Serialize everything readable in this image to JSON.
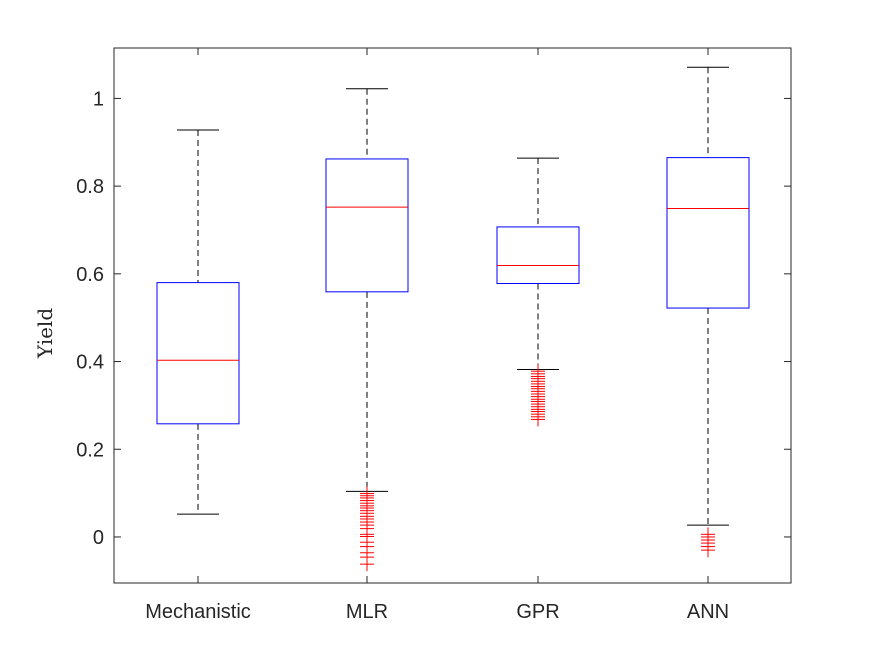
{
  "chart_data": {
    "type": "box",
    "ylabel": "Yield",
    "categories": [
      "Mechanistic",
      "MLR",
      "GPR",
      "ANN"
    ],
    "ylim": [
      -0.105,
      1.115
    ],
    "yticks": [
      0,
      0.2,
      0.4,
      0.6,
      0.8,
      1
    ],
    "ytick_labels": [
      "0",
      "0.2",
      "0.4",
      "0.6",
      "0.8",
      "1"
    ],
    "grid": false,
    "boxes": [
      {
        "name": "Mechanistic",
        "whisker_low": 0.052,
        "q1": 0.258,
        "median": 0.403,
        "q3": 0.58,
        "whisker_high": 0.928,
        "outliers": []
      },
      {
        "name": "MLR",
        "whisker_low": 0.104,
        "q1": 0.559,
        "median": 0.752,
        "q3": 0.862,
        "whisker_high": 1.022,
        "outliers": [
          0.099,
          0.094,
          0.089,
          0.083,
          0.077,
          0.071,
          0.066,
          0.06,
          0.054,
          0.047,
          0.041,
          0.034,
          0.027,
          0.019,
          0.006,
          0.001,
          -0.012,
          -0.022,
          -0.036,
          -0.046,
          -0.062
        ]
      },
      {
        "name": "GPR",
        "whisker_low": 0.382,
        "q1": 0.578,
        "median": 0.619,
        "q3": 0.707,
        "whisker_high": 0.864,
        "outliers": [
          0.378,
          0.372,
          0.366,
          0.361,
          0.355,
          0.349,
          0.343,
          0.338,
          0.332,
          0.326,
          0.32,
          0.314,
          0.309,
          0.303,
          0.297,
          0.291,
          0.286,
          0.28,
          0.274,
          0.268
        ]
      },
      {
        "name": "ANN",
        "whisker_low": 0.027,
        "q1": 0.522,
        "median": 0.749,
        "q3": 0.865,
        "whisker_high": 1.071,
        "outliers": [
          0.006,
          0.0,
          -0.007,
          -0.014,
          -0.022,
          -0.03
        ]
      }
    ],
    "colors": {
      "box": "#0000ff",
      "median": "#ff0000",
      "whisker": "#000000",
      "outlier": "#ff0000",
      "axes": "#262626"
    }
  }
}
